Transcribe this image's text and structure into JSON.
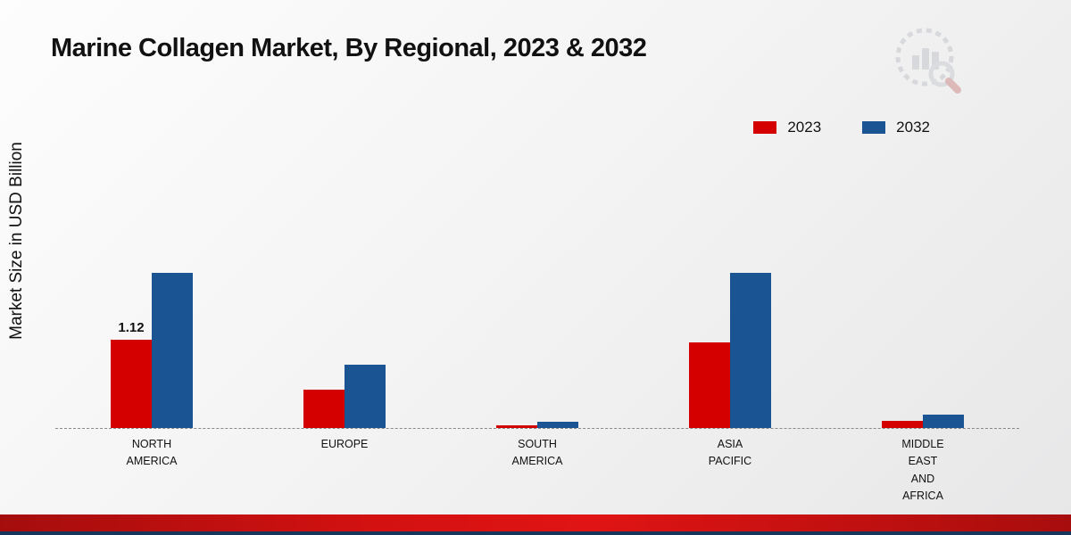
{
  "chart_data": {
    "type": "bar",
    "title": "Marine Collagen Market, By Regional, 2023 & 2032",
    "ylabel": "Market Size in USD Billion",
    "xlabel": "",
    "categories": [
      [
        "NORTH",
        "AMERICA"
      ],
      [
        "EUROPE"
      ],
      [
        "SOUTH",
        "AMERICA"
      ],
      [
        "ASIA",
        "PACIFIC"
      ],
      [
        "MIDDLE",
        "EAST",
        "AND",
        "AFRICA"
      ]
    ],
    "series": [
      {
        "name": "2023",
        "color": "#d40000",
        "values": [
          1.12,
          0.48,
          0.03,
          1.08,
          0.09
        ]
      },
      {
        "name": "2032",
        "color": "#1a5492",
        "values": [
          1.96,
          0.8,
          0.08,
          1.96,
          0.17
        ]
      }
    ],
    "ylim": [
      0,
      4.2
    ],
    "grid": false,
    "baseline_style": "dashed",
    "legend_position": "top-right",
    "data_labels": [
      {
        "series_index": 0,
        "category_index": 0,
        "text": "1.12"
      }
    ]
  },
  "branding": {
    "logo": "market-research-chart-logo"
  }
}
